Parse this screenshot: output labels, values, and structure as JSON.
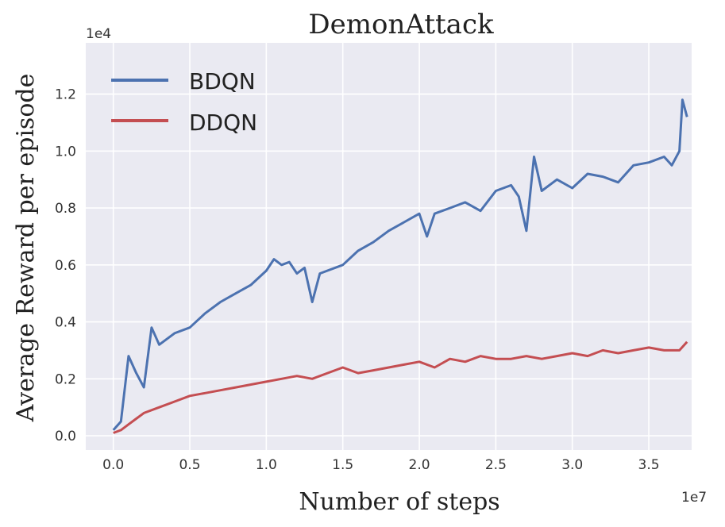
{
  "chart_data": {
    "type": "line",
    "title": "DemonAttack",
    "xlabel": "Number of steps",
    "ylabel": "Average Reward per episode",
    "x_exponent_label": "1e7",
    "y_exponent_label": "1e4",
    "xlim": [
      -0.18,
      3.78
    ],
    "ylim": [
      -0.05,
      1.38
    ],
    "x_ticks": [
      0.0,
      0.5,
      1.0,
      1.5,
      2.0,
      2.5,
      3.0,
      3.5
    ],
    "x_tick_labels": [
      "0.0",
      "0.5",
      "1.0",
      "1.5",
      "2.0",
      "2.5",
      "3.0",
      "3.5"
    ],
    "y_ticks": [
      0.0,
      0.2,
      0.4,
      0.6,
      0.8,
      1.0,
      1.2
    ],
    "y_tick_labels": [
      "0.0",
      "0.2",
      "0.4",
      "0.6",
      "0.8",
      "1.0",
      "1.2"
    ],
    "grid": true,
    "legend_position": "top-left",
    "background_color": "#eaeaf2",
    "series": [
      {
        "name": "BDQN",
        "color": "#4c72b0",
        "x": [
          0.0,
          0.05,
          0.1,
          0.15,
          0.2,
          0.25,
          0.3,
          0.4,
          0.5,
          0.6,
          0.7,
          0.8,
          0.9,
          1.0,
          1.05,
          1.1,
          1.15,
          1.2,
          1.25,
          1.3,
          1.35,
          1.4,
          1.5,
          1.6,
          1.7,
          1.8,
          1.9,
          2.0,
          2.05,
          2.1,
          2.2,
          2.3,
          2.4,
          2.5,
          2.6,
          2.65,
          2.7,
          2.75,
          2.8,
          2.9,
          3.0,
          3.1,
          3.2,
          3.3,
          3.4,
          3.5,
          3.6,
          3.65,
          3.7,
          3.72,
          3.75
        ],
        "y": [
          0.02,
          0.05,
          0.28,
          0.22,
          0.17,
          0.38,
          0.32,
          0.36,
          0.38,
          0.43,
          0.47,
          0.5,
          0.53,
          0.58,
          0.62,
          0.6,
          0.61,
          0.57,
          0.59,
          0.47,
          0.57,
          0.58,
          0.6,
          0.65,
          0.68,
          0.72,
          0.75,
          0.78,
          0.7,
          0.78,
          0.8,
          0.82,
          0.79,
          0.86,
          0.88,
          0.84,
          0.72,
          0.98,
          0.86,
          0.9,
          0.87,
          0.92,
          0.91,
          0.89,
          0.95,
          0.96,
          0.98,
          0.95,
          1.0,
          1.18,
          1.12
        ]
      },
      {
        "name": "DDQN",
        "color": "#c44e52",
        "x": [
          0.0,
          0.05,
          0.1,
          0.15,
          0.2,
          0.3,
          0.4,
          0.5,
          0.6,
          0.7,
          0.8,
          0.9,
          1.0,
          1.1,
          1.2,
          1.3,
          1.4,
          1.5,
          1.6,
          1.7,
          1.8,
          1.9,
          2.0,
          2.1,
          2.2,
          2.3,
          2.4,
          2.5,
          2.6,
          2.7,
          2.8,
          2.9,
          3.0,
          3.1,
          3.2,
          3.3,
          3.4,
          3.5,
          3.6,
          3.7,
          3.75
        ],
        "y": [
          0.01,
          0.02,
          0.04,
          0.06,
          0.08,
          0.1,
          0.12,
          0.14,
          0.15,
          0.16,
          0.17,
          0.18,
          0.19,
          0.2,
          0.21,
          0.2,
          0.22,
          0.24,
          0.22,
          0.23,
          0.24,
          0.25,
          0.26,
          0.24,
          0.27,
          0.26,
          0.28,
          0.27,
          0.27,
          0.28,
          0.27,
          0.28,
          0.29,
          0.28,
          0.3,
          0.29,
          0.3,
          0.31,
          0.3,
          0.3,
          0.33
        ]
      }
    ]
  }
}
